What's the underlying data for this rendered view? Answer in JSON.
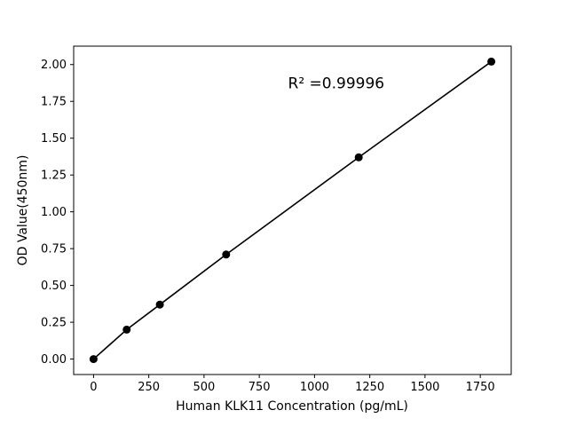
{
  "figure": {
    "background": "#ffffff"
  },
  "chart_data": {
    "type": "line",
    "title": "",
    "xlabel": "Human KLK11 Concentration (pg/mL)",
    "ylabel": "OD Value(450nm)",
    "x": [
      0,
      150,
      300,
      600,
      1200,
      1800
    ],
    "y": [
      0.0,
      0.2,
      0.37,
      0.71,
      1.37,
      2.02
    ],
    "xlim": [
      -90,
      1890
    ],
    "ylim": [
      -0.105,
      2.125
    ],
    "xticks": {
      "values": [
        0,
        250,
        500,
        750,
        1000,
        1250,
        1500,
        1750
      ],
      "labels": [
        "0",
        "250",
        "500",
        "750",
        "1000",
        "1250",
        "1500",
        "1750"
      ]
    },
    "yticks": {
      "values": [
        0,
        0.25,
        0.5,
        0.75,
        1.0,
        1.25,
        1.5,
        1.75,
        2.0
      ],
      "labels": [
        "0.00",
        "0.25",
        "0.50",
        "0.75",
        "1.00",
        "1.25",
        "1.50",
        "1.75",
        "2.00"
      ]
    },
    "annotation": {
      "text": "R² =0.99996",
      "x": 880,
      "y": 1.84
    },
    "colors": {
      "line": "#000000",
      "marker": "#000000",
      "spine": "#000000",
      "background": "#ffffff"
    },
    "marker_radius": 4.5,
    "grid": false,
    "legend": null
  }
}
